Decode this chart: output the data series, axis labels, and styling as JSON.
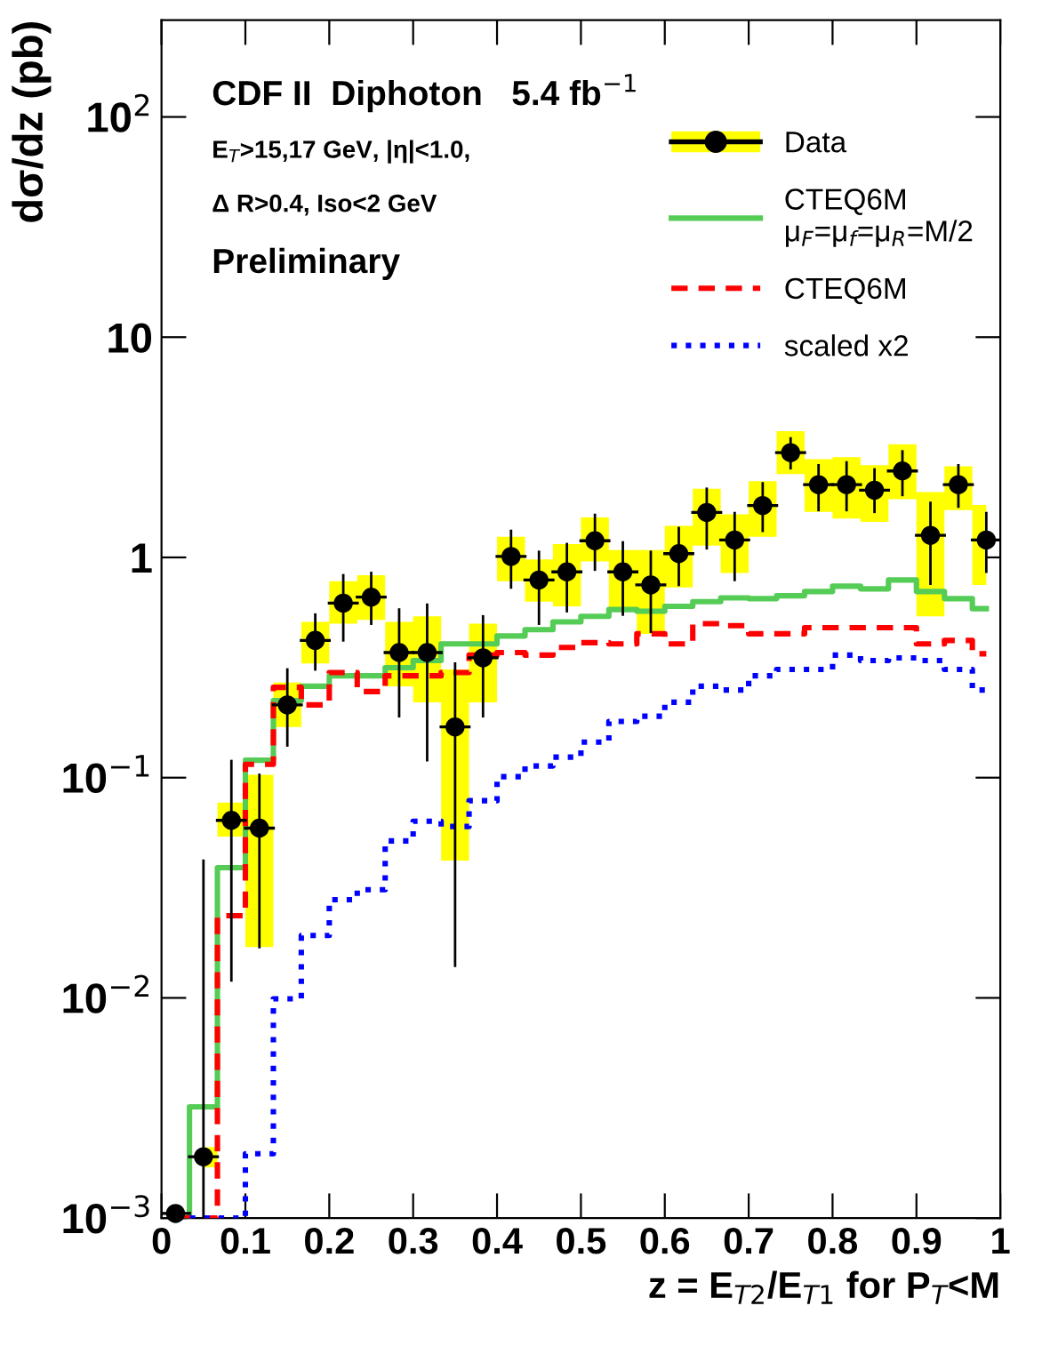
{
  "chart_data": {
    "type": "step",
    "xlabel": "z = E$_{T2}$/E$_{T1}$ for P$_{T}$<M",
    "ylabel": "dσ/dz (pb)",
    "log": "y",
    "xlim": [
      0,
      1
    ],
    "ylim": [
      0.001,
      275
    ],
    "xticks": [
      0,
      0.1,
      0.2,
      0.3,
      0.4,
      0.5,
      0.6,
      0.7,
      0.8,
      0.9,
      1
    ],
    "yticks": [
      {
        "value": 0.001,
        "label": "10$^{−3}$"
      },
      {
        "value": 0.01,
        "label": "10$^{−2}$"
      },
      {
        "value": 0.1,
        "label": "10$^{−1}$"
      },
      1,
      10,
      {
        "value": 100,
        "label": "10$^{2}$"
      }
    ],
    "grid": false,
    "legend": "top right",
    "annotations": [
      "CDF II  Diphoton   5.4 fb$^{−1}$",
      "E$_{T}$>15,17 GeV, |η|<1.0,",
      "Δ R>0.4, Iso<2 GeV",
      "Preliminary"
    ],
    "x": [
      0.0167,
      0.05,
      0.0833,
      0.1167,
      0.15,
      0.1833,
      0.2167,
      0.25,
      0.2833,
      0.3167,
      0.35,
      0.3833,
      0.4167,
      0.45,
      0.4833,
      0.5167,
      0.55,
      0.5833,
      0.6167,
      0.65,
      0.6833,
      0.7167,
      0.75,
      0.7833,
      0.8167,
      0.85,
      0.8833,
      0.9167,
      0.95,
      0.9833
    ],
    "series": [
      {
        "name": "Data",
        "type": "scatter",
        "marker": "circle",
        "color": "#000000",
        "values": [
          0.00105,
          0.0019,
          0.064,
          0.059,
          0.214,
          0.42,
          0.62,
          0.66,
          0.37,
          0.37,
          0.17,
          0.35,
          1.01,
          0.79,
          0.86,
          1.19,
          0.86,
          0.75,
          1.04,
          1.6,
          1.2,
          1.72,
          2.99,
          2.14,
          2.14,
          2.02,
          2.47,
          1.26,
          2.14,
          1.2
        ],
        "errors": [
          null,
          [
            0.001,
            0.042
          ],
          [
            0.012,
            0.119
          ],
          [
            0.017,
            0.103
          ],
          [
            0.14,
            0.31
          ],
          [
            0.31,
            0.55
          ],
          [
            0.42,
            0.83
          ],
          [
            0.5,
            0.85
          ],
          [
            0.19,
            0.58
          ],
          [
            0.12,
            0.61
          ],
          [
            0.014,
            0.33
          ],
          [
            0.19,
            0.54
          ],
          [
            0.73,
            1.32
          ],
          [
            0.5,
            1.06
          ],
          [
            0.57,
            1.15
          ],
          [
            0.88,
            1.56
          ],
          [
            0.55,
            1.17
          ],
          [
            0.46,
            1.06
          ],
          [
            0.75,
            1.36
          ],
          [
            1.1,
            2.05
          ],
          [
            0.79,
            1.59
          ],
          [
            1.32,
            2.17
          ],
          [
            2.54,
            3.47
          ],
          [
            1.64,
            2.62
          ],
          [
            1.64,
            2.7
          ],
          [
            1.61,
            2.51
          ],
          [
            1.92,
            3.03
          ],
          [
            0.76,
            1.77
          ],
          [
            1.7,
            2.62
          ],
          [
            0.86,
            1.59
          ]
        ],
        "lower": [
          null,
          0.0017,
          0.054,
          0.017,
          0.17,
          0.33,
          0.5,
          0.52,
          0.26,
          0.22,
          0.042,
          0.22,
          0.78,
          0.63,
          0.6,
          0.96,
          0.57,
          0.45,
          0.73,
          1.13,
          0.85,
          1.24,
          2.39,
          1.61,
          1.5,
          1.45,
          1.84,
          0.54,
          1.64,
          0.75
        ],
        "upper": [
          null,
          0.0021,
          0.077,
          0.103,
          0.27,
          0.51,
          0.78,
          0.83,
          0.51,
          0.54,
          0.31,
          0.5,
          1.24,
          0.98,
          1.15,
          1.52,
          1.08,
          1.08,
          1.39,
          2.05,
          1.57,
          2.22,
          3.74,
          2.79,
          2.85,
          2.62,
          3.26,
          1.98,
          2.59,
          1.73
        ],
        "xerrors": [
          0.0167,
          0.0167,
          0.0167,
          0.0167,
          0.0167,
          0.0167,
          0.0167,
          0.0167,
          0.0167,
          0.0167,
          0.0167,
          0.0167,
          0.0167,
          0.0167,
          0.0167,
          0.0167,
          0.0167,
          0.0167,
          0.0167,
          0.0167,
          0.0167,
          0.0167,
          0.0167,
          0.0167,
          0.0167,
          0.0167,
          0.0167,
          0.0167,
          0.0167,
          0.0167
        ]
      },
      {
        "name": "CTEQ6M\nμ$_{F}$=μ$_{f}$=μ$_{R}$=M/2",
        "color": "#55cc55",
        "line_style": "solid",
        "values": [
          0.001,
          0.0032,
          0.039,
          0.12,
          0.224,
          0.26,
          0.29,
          0.29,
          0.316,
          0.34,
          0.405,
          0.405,
          0.44,
          0.47,
          0.51,
          0.54,
          0.58,
          0.57,
          0.6,
          0.63,
          0.655,
          0.65,
          0.67,
          0.7,
          0.74,
          0.72,
          0.79,
          0.7,
          0.65,
          0.585
        ]
      },
      {
        "name": "CTEQ6M",
        "color": "#ff0000",
        "line_style": "dashed",
        "values": [
          0.001,
          0.001,
          0.0236,
          0.115,
          0.257,
          0.214,
          0.3,
          0.246,
          0.29,
          0.29,
          0.3,
          0.36,
          0.37,
          0.36,
          0.39,
          0.41,
          0.405,
          0.45,
          0.405,
          0.5,
          0.49,
          0.45,
          0.45,
          0.48,
          0.48,
          0.48,
          0.48,
          0.405,
          0.42,
          0.365
        ]
      },
      {
        "name": "scaled x2",
        "color": "#0000ff",
        "line_style": "dotted",
        "values": [
          0.001,
          0.001,
          0.001,
          0.00196,
          0.0099,
          0.0192,
          0.0279,
          0.031,
          0.0516,
          0.0634,
          0.06,
          0.0786,
          0.101,
          0.113,
          0.124,
          0.145,
          0.18,
          0.19,
          0.22,
          0.26,
          0.25,
          0.29,
          0.31,
          0.31,
          0.36,
          0.34,
          0.35,
          0.34,
          0.31,
          0.25
        ]
      }
    ]
  }
}
